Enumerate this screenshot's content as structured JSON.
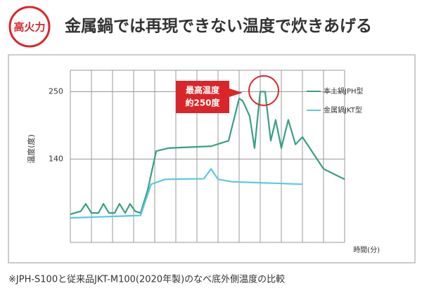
{
  "badge": "高火力",
  "chart_data": {
    "type": "line",
    "title": "金属鍋では再現できない温度で炊きあげる",
    "ylabel": "温度(度)",
    "xlabel": "時間(分)",
    "annotation": [
      "最高温度",
      "約250度"
    ],
    "footnote": "※JPH-S100と従来品JKT-M100(2020年製)のなべ底外側温度の比較",
    "xlim": [
      0,
      13
    ],
    "xticks": [
      0,
      1,
      2,
      3,
      4,
      5,
      6,
      7,
      8,
      9,
      10,
      11,
      12,
      13
    ],
    "ylim": [
      4,
      285
    ],
    "yticks": [
      140,
      250
    ],
    "grid": true,
    "series": [
      {
        "name": "本土鍋JPH型",
        "color": "#3a9e85",
        "x": [
          0,
          0.5,
          0.73,
          1,
          1.33,
          1.57,
          1.83,
          2.1,
          2.33,
          2.6,
          2.83,
          3.07,
          3.33,
          3.67,
          4.07,
          4.67,
          6.67,
          7.5,
          8,
          8.17,
          8.5,
          8.73,
          9,
          9.23,
          9.5,
          9.73,
          10,
          10.33,
          10.67,
          11,
          12,
          13
        ],
        "values": [
          50,
          55,
          67,
          52,
          52,
          67,
          52,
          52,
          67,
          52,
          67,
          55,
          52,
          90,
          153,
          158,
          161,
          170,
          239,
          235,
          210,
          158,
          250,
          250,
          170,
          204,
          158,
          204,
          164,
          176,
          124,
          107
        ]
      },
      {
        "name": "金属鍋JKT型",
        "color": "#5cc8e0",
        "x": [
          0,
          3.33,
          3.83,
          4.5,
          6.33,
          6.67,
          7,
          7.67,
          11
        ],
        "values": [
          44,
          48,
          99,
          107,
          108,
          124,
          107,
          103,
          99
        ]
      }
    ]
  }
}
